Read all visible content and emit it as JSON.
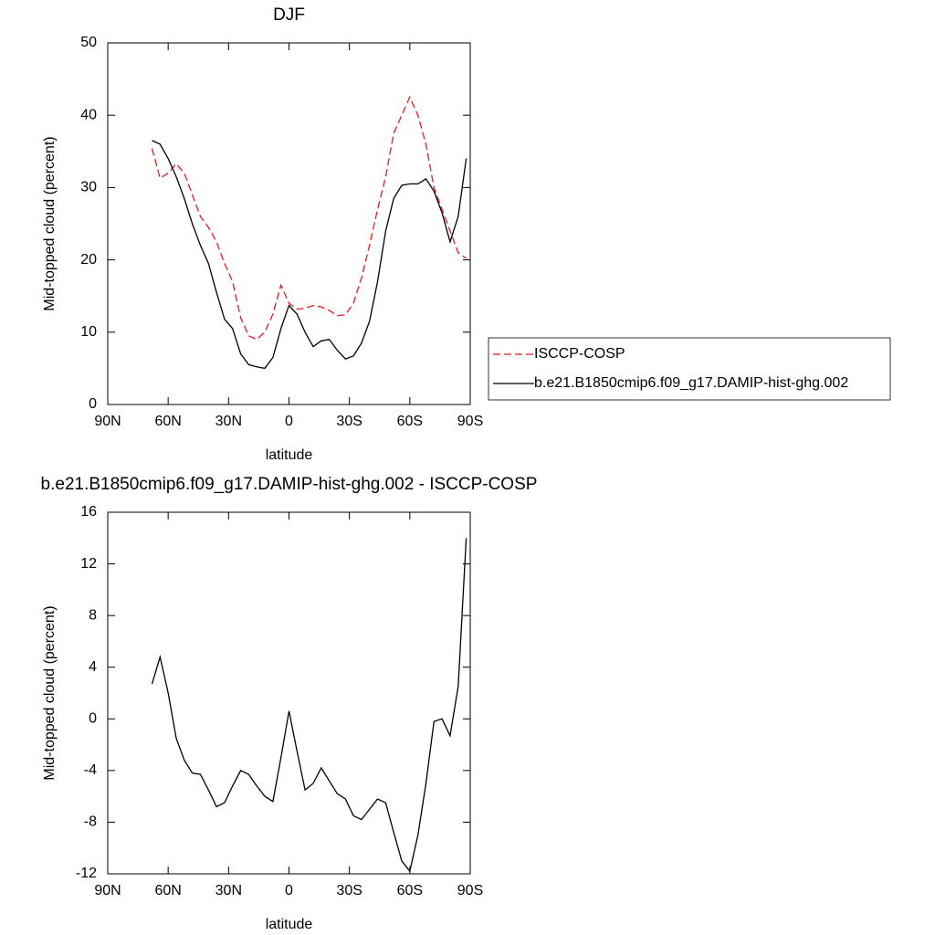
{
  "chart_data": [
    {
      "type": "line",
      "title": "DJF",
      "xlabel": "latitude",
      "ylabel": "Mid-topped cloud (percent)",
      "x": [
        68,
        64,
        60,
        56,
        52,
        48,
        44,
        40,
        36,
        32,
        28,
        24,
        20,
        16,
        12,
        8,
        4,
        0,
        -4,
        -8,
        -12,
        -16,
        -20,
        -24,
        -28,
        -32,
        -36,
        -40,
        -44,
        -48,
        -52,
        -56,
        -60,
        -64,
        -68,
        -72,
        -76,
        -80,
        -84,
        -88
      ],
      "xlim": [
        90,
        -90
      ],
      "xticks": [
        {
          "value": 90,
          "label": "90N"
        },
        {
          "value": 60,
          "label": "60N"
        },
        {
          "value": 30,
          "label": "30N"
        },
        0,
        {
          "value": -30,
          "label": "30S"
        },
        {
          "value": -60,
          "label": "60S"
        },
        {
          "value": -90,
          "label": "90S"
        }
      ],
      "ylim": [
        0,
        50
      ],
      "yticks": [
        0,
        10,
        20,
        30,
        40,
        50
      ],
      "legend": "right",
      "series": [
        {
          "name": "ISCCP-COSP",
          "color": "#e31a1c",
          "line_style": "dashed",
          "values": [
            35.4,
            31.3,
            32,
            33.3,
            32,
            29,
            26,
            24.5,
            22.5,
            19.5,
            17,
            12,
            9.5,
            9,
            10,
            12.5,
            16.5,
            14,
            13.2,
            13.3,
            13.7,
            13.5,
            13,
            12.3,
            12.4,
            14,
            17.5,
            22,
            27,
            31.5,
            37.5,
            40,
            42.5,
            40,
            36,
            30,
            27,
            24,
            21,
            20.2
          ]
        },
        {
          "name": "b.e21.B1850cmip6.f09_g17.DAMIP-hist-ghg.002",
          "color": "#000000",
          "line_style": "solid",
          "values": [
            36.5,
            36,
            34,
            31.5,
            28.5,
            25,
            22,
            19.5,
            15.5,
            11.8,
            10.5,
            7,
            5.5,
            5.2,
            5,
            6.5,
            10.5,
            13.7,
            12.5,
            10,
            8,
            8.8,
            9,
            7.5,
            6.3,
            6.7,
            8.5,
            11.5,
            17,
            24,
            28.5,
            30.3,
            30.5,
            30.5,
            31.2,
            29.5,
            26.5,
            22.5,
            26,
            34
          ]
        }
      ]
    },
    {
      "type": "line",
      "title": "b.e21.B1850cmip6.f09_g17.DAMIP-hist-ghg.002 - ISCCP-COSP",
      "xlabel": "latitude",
      "ylabel": "Mid-topped cloud (percent)",
      "x": [
        68,
        64,
        60,
        56,
        52,
        48,
        44,
        40,
        36,
        32,
        28,
        24,
        20,
        16,
        12,
        8,
        4,
        0,
        -4,
        -8,
        -12,
        -16,
        -20,
        -24,
        -28,
        -32,
        -36,
        -40,
        -44,
        -48,
        -52,
        -56,
        -60,
        -64,
        -68,
        -72,
        -76,
        -80,
        -84,
        -88
      ],
      "xlim": [
        90,
        -90
      ],
      "xticks": [
        {
          "value": 90,
          "label": "90N"
        },
        {
          "value": 60,
          "label": "60N"
        },
        {
          "value": 30,
          "label": "30N"
        },
        0,
        {
          "value": -30,
          "label": "30S"
        },
        {
          "value": -60,
          "label": "60S"
        },
        {
          "value": -90,
          "label": "90S"
        }
      ],
      "ylim": [
        -12,
        16
      ],
      "yticks": [
        -12,
        -8,
        -4,
        0,
        4,
        8,
        12,
        16
      ],
      "series": [
        {
          "color": "#000000",
          "line_style": "solid",
          "values": [
            2.7,
            4.8,
            2,
            -1.5,
            -3.2,
            -4.2,
            -4.3,
            -5.5,
            -6.8,
            -6.5,
            -5.2,
            -4,
            -4.3,
            -5.2,
            -6,
            -6.4,
            -3,
            0.6,
            -2.5,
            -5.5,
            -5,
            -3.8,
            -4.8,
            -5.8,
            -6.2,
            -7.5,
            -7.8,
            -7,
            -6.2,
            -6.5,
            -8.8,
            -11,
            -11.8,
            -9,
            -5,
            -0.2,
            0,
            -1.3,
            2.5,
            14
          ]
        }
      ]
    }
  ]
}
